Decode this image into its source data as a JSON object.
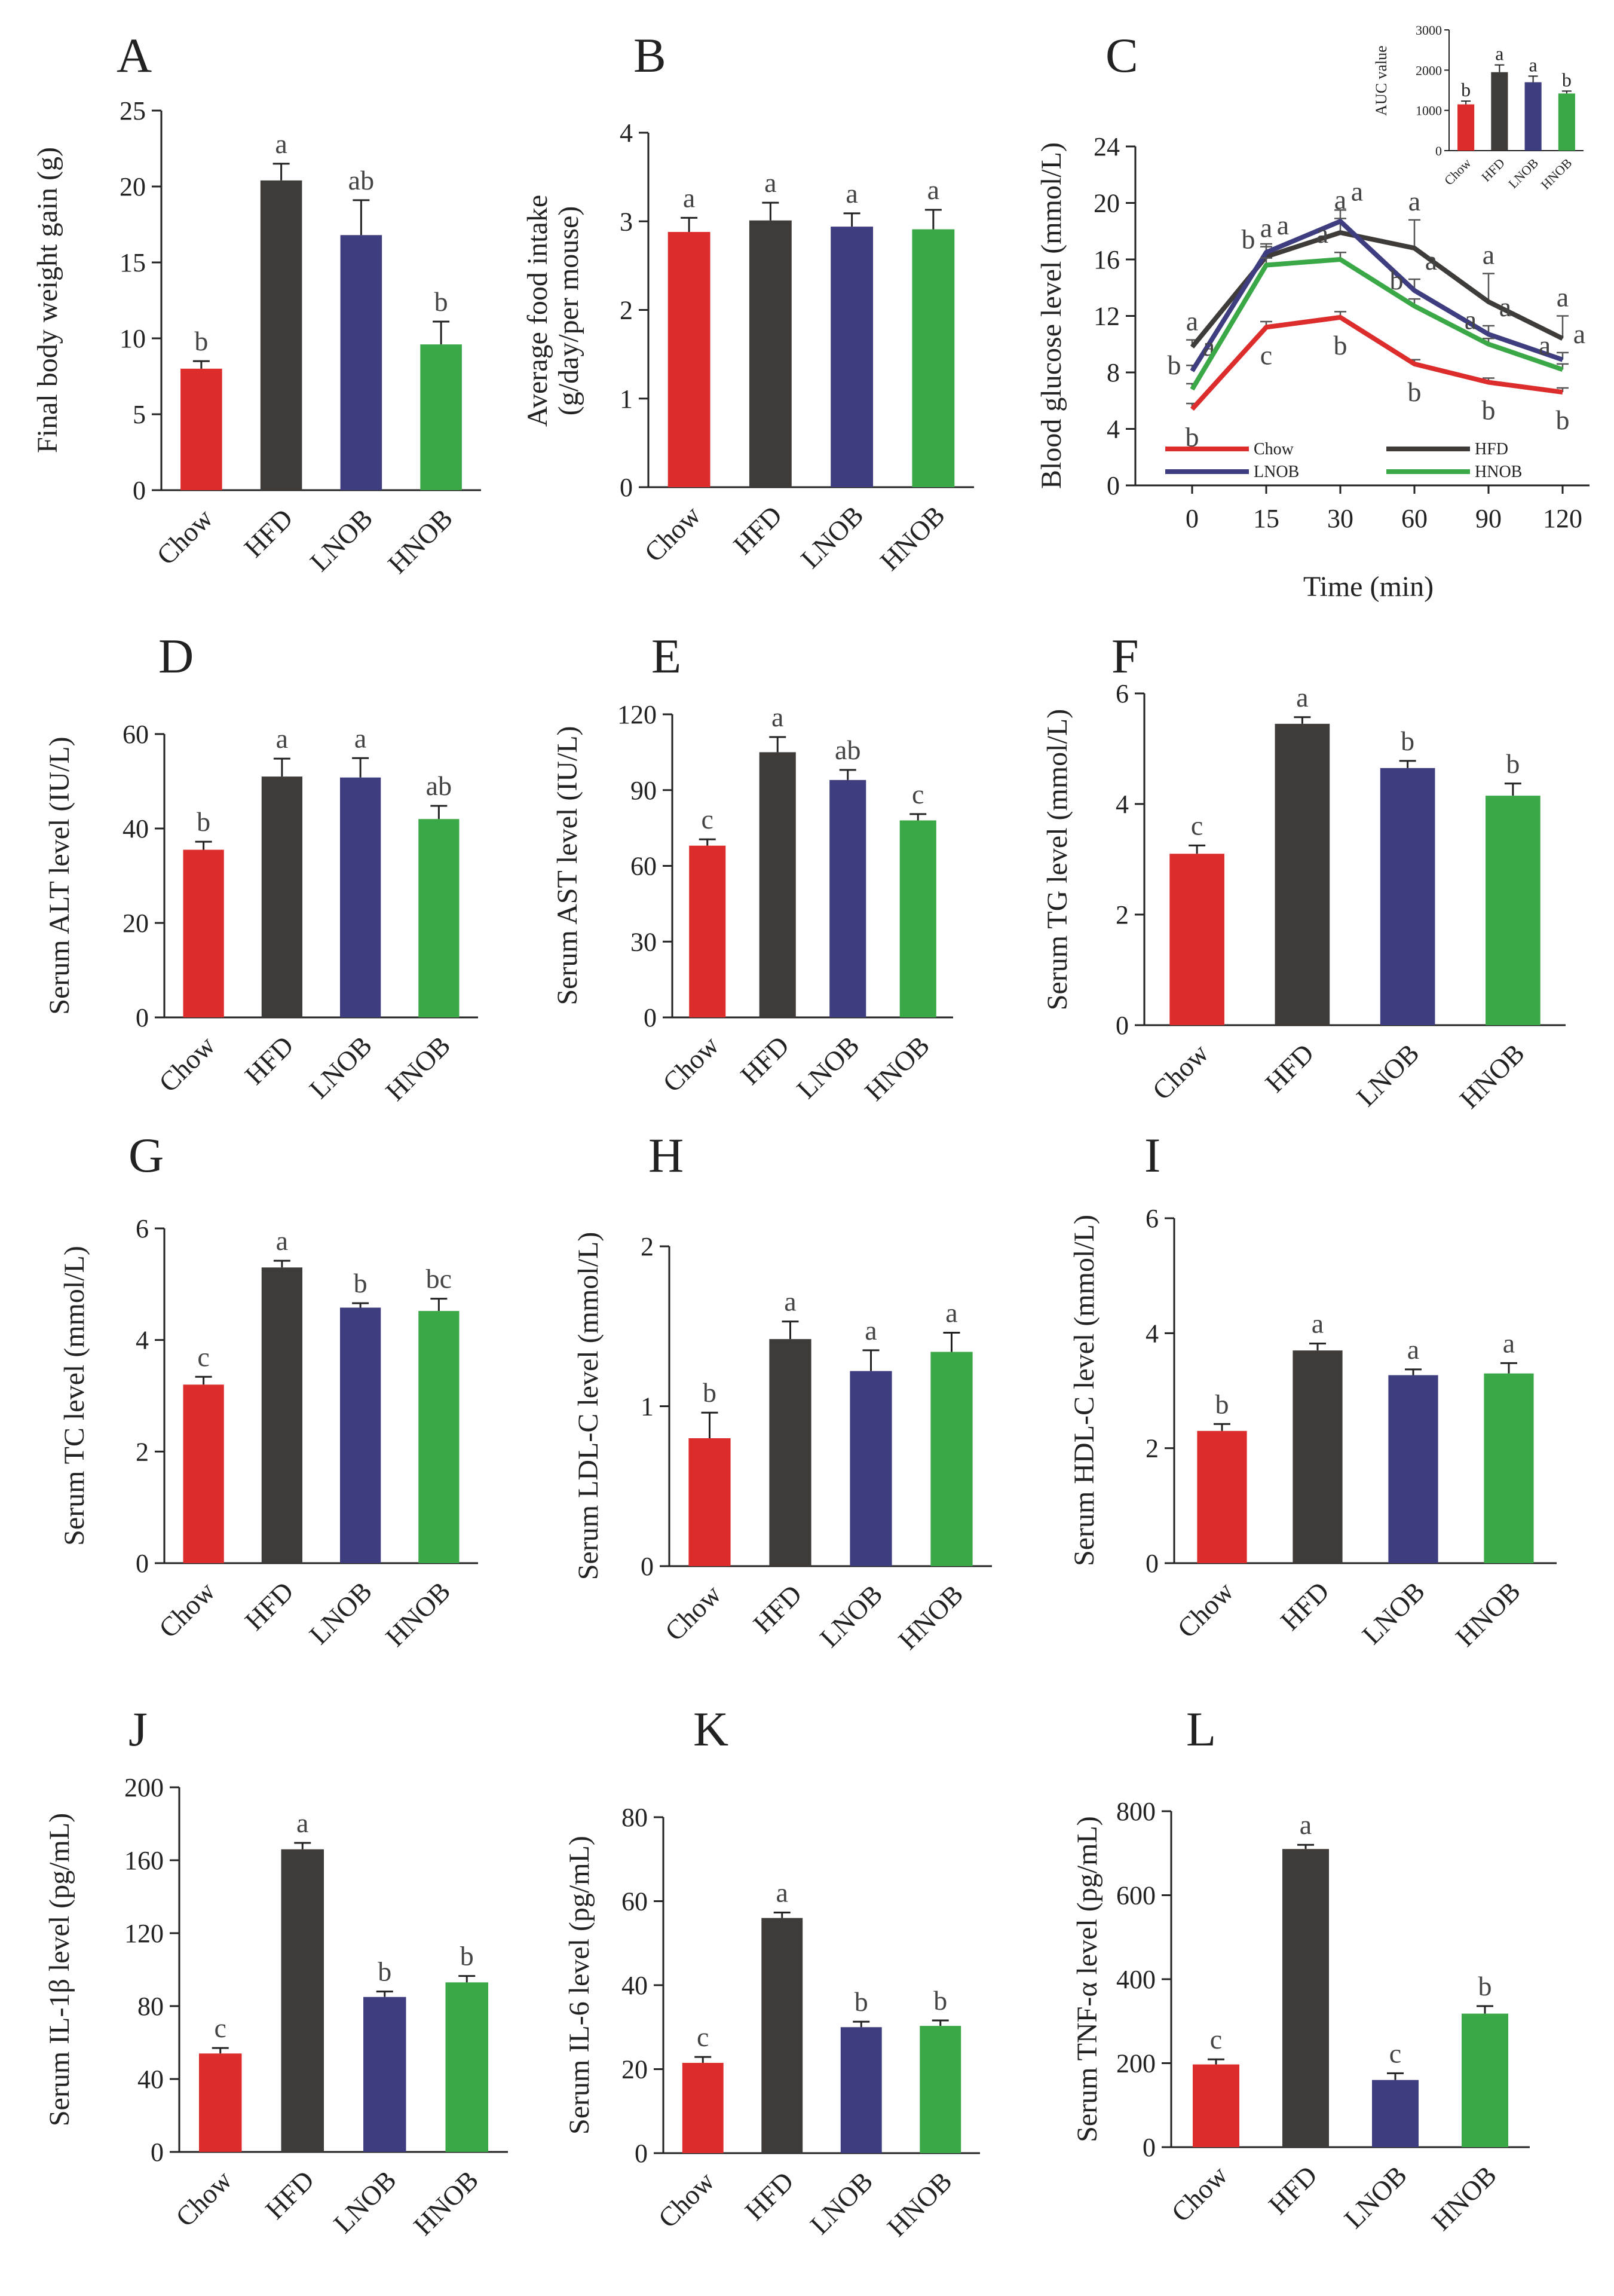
{
  "colors": {
    "Chow": "#dd2c2c",
    "HFD": "#3f3b38",
    "LNOB": "#3e3d80",
    "HNOB": "#3aa846",
    "axis": "#222222",
    "text": "#222222"
  },
  "chart_data": [
    {
      "id": "A",
      "type": "bar",
      "letter": "A",
      "categories": [
        "Chow",
        "HFD",
        "LNOB",
        "HNOB"
      ],
      "values": [
        8.0,
        20.4,
        16.8,
        9.6
      ],
      "errors": [
        0.5,
        1.1,
        2.3,
        1.5
      ],
      "sig": [
        "b",
        "a",
        "ab",
        "b"
      ],
      "ylabel": "Final body weight gain (g)",
      "ylim": [
        0,
        25
      ],
      "yticks": [
        0,
        5,
        10,
        15,
        20,
        25
      ]
    },
    {
      "id": "B",
      "type": "bar",
      "letter": "B",
      "categories": [
        "Chow",
        "HFD",
        "LNOB",
        "HNOB"
      ],
      "values": [
        2.88,
        3.01,
        2.94,
        2.91
      ],
      "errors": [
        0.16,
        0.2,
        0.15,
        0.22
      ],
      "sig": [
        "a",
        "a",
        "a",
        "a"
      ],
      "ylabel": "Average food intake (g/day/per mouse)",
      "ylabel_lines": [
        "Average food intake",
        "(g/day/per mouse)"
      ],
      "ylim": [
        0,
        4
      ],
      "yticks": [
        0,
        1,
        2,
        3,
        4
      ]
    },
    {
      "id": "C",
      "type": "line",
      "letter": "C",
      "title": "Time (min)",
      "x": [
        "0",
        "15",
        "30",
        "60",
        "90",
        "120"
      ],
      "series": [
        {
          "name": "Chow",
          "values": [
            5.4,
            11.2,
            11.9,
            8.6,
            7.3,
            6.6
          ],
          "errors": [
            0.4,
            0.4,
            0.4,
            0.3,
            0.3,
            0.3
          ],
          "sig": [
            "b",
            "c",
            "b",
            "b",
            "b",
            "b"
          ]
        },
        {
          "name": "HFD",
          "values": [
            9.8,
            16.2,
            17.9,
            16.8,
            13.0,
            10.4
          ],
          "errors": [
            0.5,
            0.7,
            1.0,
            2.0,
            2.0,
            1.6
          ],
          "sig": [
            "a",
            "a",
            "a",
            "a",
            "a",
            "a"
          ]
        },
        {
          "name": "LNOB",
          "values": [
            8.1,
            16.5,
            18.7,
            13.8,
            10.7,
            8.9
          ],
          "errors": [
            0.4,
            0.6,
            0.8,
            0.8,
            0.6,
            0.5
          ],
          "sig": [
            "a",
            "a",
            "a",
            "a",
            "a",
            "a"
          ]
        },
        {
          "name": "HNOB",
          "values": [
            6.8,
            15.6,
            16.0,
            12.7,
            10.0,
            8.2
          ],
          "errors": [
            0.4,
            0.5,
            0.5,
            0.5,
            0.4,
            0.4
          ],
          "sig": [
            "b",
            "b",
            "a",
            "b",
            "a",
            "a"
          ]
        }
      ],
      "xlabel": "Time (min)",
      "ylabel": "Blood glucose level (mmol/L)",
      "ylim": [
        0,
        24
      ],
      "yticks": [
        0,
        4,
        8,
        12,
        16,
        20,
        24
      ],
      "inset": {
        "type": "bar",
        "categories": [
          "Chow",
          "HFD",
          "LNOB",
          "HNOB"
        ],
        "values": [
          1150,
          1950,
          1700,
          1420
        ],
        "errors": [
          80,
          180,
          150,
          60
        ],
        "sig": [
          "b",
          "a",
          "a",
          "b"
        ],
        "ylabel": "AUC value",
        "ylim": [
          0,
          3000
        ],
        "yticks": [
          0,
          1000,
          2000,
          3000
        ]
      }
    },
    {
      "id": "D",
      "type": "bar",
      "letter": "D",
      "categories": [
        "Chow",
        "HFD",
        "LNOB",
        "HNOB"
      ],
      "values": [
        35.5,
        51.0,
        50.8,
        42.0
      ],
      "errors": [
        1.7,
        3.8,
        4.1,
        2.8
      ],
      "sig": [
        "b",
        "a",
        "a",
        "ab"
      ],
      "ylabel": "Serum ALT level (IU/L)",
      "ylim": [
        0,
        60
      ],
      "yticks": [
        0,
        20,
        40,
        60
      ]
    },
    {
      "id": "E",
      "type": "bar",
      "letter": "E",
      "categories": [
        "Chow",
        "HFD",
        "LNOB",
        "HNOB"
      ],
      "values": [
        68,
        105,
        94,
        78
      ],
      "errors": [
        2.5,
        6,
        4,
        2.5
      ],
      "sig": [
        "c",
        "a",
        "ab",
        "c"
      ],
      "ylabel": "Serum AST level (IU/L)",
      "ylim": [
        0,
        120
      ],
      "yticks": [
        0,
        30,
        60,
        90,
        120
      ]
    },
    {
      "id": "F",
      "type": "bar",
      "letter": "F",
      "categories": [
        "Chow",
        "HFD",
        "LNOB",
        "HNOB"
      ],
      "values": [
        3.1,
        5.45,
        4.65,
        4.15
      ],
      "errors": [
        0.15,
        0.12,
        0.13,
        0.22
      ],
      "sig": [
        "c",
        "a",
        "b",
        "b"
      ],
      "ylabel": "Serum TG level (mmol/L)",
      "ylim": [
        0,
        6
      ],
      "yticks": [
        0,
        2,
        4,
        6
      ]
    },
    {
      "id": "G",
      "type": "bar",
      "letter": "G",
      "categories": [
        "Chow",
        "HFD",
        "LNOB",
        "HNOB"
      ],
      "values": [
        3.2,
        5.3,
        4.58,
        4.52
      ],
      "errors": [
        0.14,
        0.12,
        0.08,
        0.22
      ],
      "sig": [
        "c",
        "a",
        "b",
        "bc"
      ],
      "ylabel": "Serum TC level (mmol/L)",
      "ylim": [
        0,
        6
      ],
      "yticks": [
        0,
        2,
        4,
        6
      ]
    },
    {
      "id": "H",
      "type": "bar",
      "letter": "H",
      "categories": [
        "Chow",
        "HFD",
        "LNOB",
        "HNOB"
      ],
      "values": [
        0.8,
        1.42,
        1.22,
        1.34
      ],
      "errors": [
        0.16,
        0.11,
        0.13,
        0.12
      ],
      "sig": [
        "b",
        "a",
        "a",
        "a"
      ],
      "ylabel": "Serum LDL-C level (mmol/L)",
      "ylim": [
        0,
        2
      ],
      "yticks": [
        0,
        1,
        2
      ]
    },
    {
      "id": "I",
      "type": "bar",
      "letter": "I",
      "categories": [
        "Chow",
        "HFD",
        "LNOB",
        "HNOB"
      ],
      "values": [
        2.3,
        3.7,
        3.27,
        3.3
      ],
      "errors": [
        0.12,
        0.12,
        0.1,
        0.18
      ],
      "sig": [
        "b",
        "a",
        "a",
        "a"
      ],
      "ylabel": "Serum HDL-C level (mmol/L)",
      "ylim": [
        0,
        6
      ],
      "yticks": [
        0,
        2,
        4,
        6
      ]
    },
    {
      "id": "J",
      "type": "bar",
      "letter": "J",
      "categories": [
        "Chow",
        "HFD",
        "LNOB",
        "HNOB"
      ],
      "values": [
        54,
        166,
        85,
        93
      ],
      "errors": [
        3,
        3.5,
        3,
        3.5
      ],
      "sig": [
        "c",
        "a",
        "b",
        "b"
      ],
      "ylabel": "Serum IL-1β level (pg/mL)",
      "ylim": [
        0,
        200
      ],
      "yticks": [
        0,
        40,
        80,
        120,
        160,
        200
      ]
    },
    {
      "id": "K",
      "type": "bar",
      "letter": "K",
      "categories": [
        "Chow",
        "HFD",
        "LNOB",
        "HNOB"
      ],
      "values": [
        21.5,
        56,
        30,
        30.3
      ],
      "errors": [
        1.4,
        1.3,
        1.3,
        1.3
      ],
      "sig": [
        "c",
        "a",
        "b",
        "b"
      ],
      "ylabel": "Serum IL-6 level (pg/mL)",
      "ylim": [
        0,
        80
      ],
      "yticks": [
        0,
        20,
        40,
        60,
        80
      ]
    },
    {
      "id": "L",
      "type": "bar",
      "letter": "L",
      "categories": [
        "Chow",
        "HFD",
        "LNOB",
        "HNOB"
      ],
      "values": [
        197,
        710,
        160,
        318
      ],
      "errors": [
        12,
        10,
        16,
        18
      ],
      "sig": [
        "c",
        "a",
        "c",
        "b"
      ],
      "ylabel": "Serum TNF-α level (pg/mL)",
      "ylim": [
        0,
        800
      ],
      "yticks": [
        0,
        200,
        400,
        600,
        800
      ]
    }
  ]
}
